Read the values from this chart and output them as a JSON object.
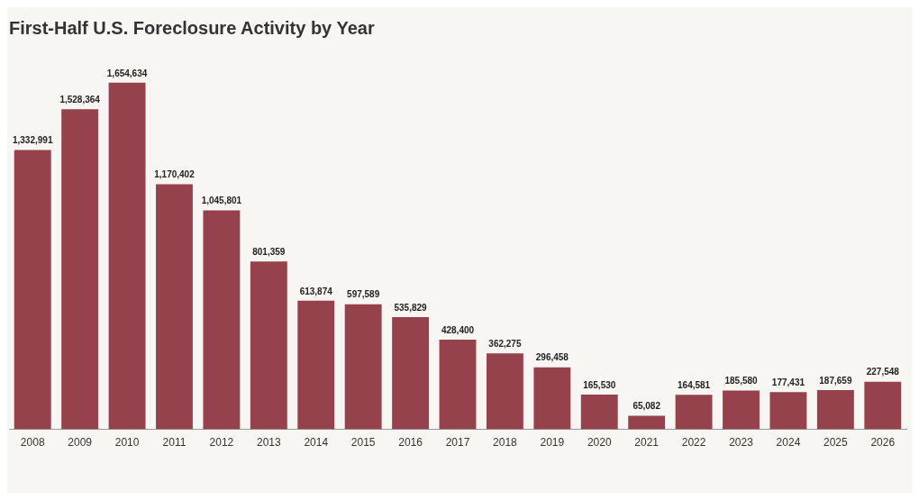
{
  "chart_data": {
    "type": "bar",
    "title": "First-Half U.S. Foreclosure Activity by Year",
    "categories": [
      "2008",
      "2009",
      "2010",
      "2011",
      "2012",
      "2013",
      "2014",
      "2015",
      "2016",
      "2017",
      "2018",
      "2019",
      "2020",
      "2021",
      "2022",
      "2023",
      "2024",
      "2025",
      "2026"
    ],
    "values": [
      1332991,
      1528364,
      1654634,
      1170402,
      1045801,
      801359,
      613874,
      597589,
      535829,
      428400,
      362275,
      296458,
      165530,
      65082,
      164581,
      185580,
      177431,
      187659,
      227548
    ],
    "value_labels": [
      "1,332,991",
      "1,528,364",
      "1,654,634",
      "1,170,402",
      "1,045,801",
      "801,359",
      "613,874",
      "597,589",
      "535,829",
      "428,400",
      "362,275",
      "296,458",
      "165,530",
      "65,082",
      "164,581",
      "185,580",
      "177,431",
      "187,659",
      "227,548"
    ],
    "color": "#95424c",
    "grid": false,
    "legend": false
  }
}
